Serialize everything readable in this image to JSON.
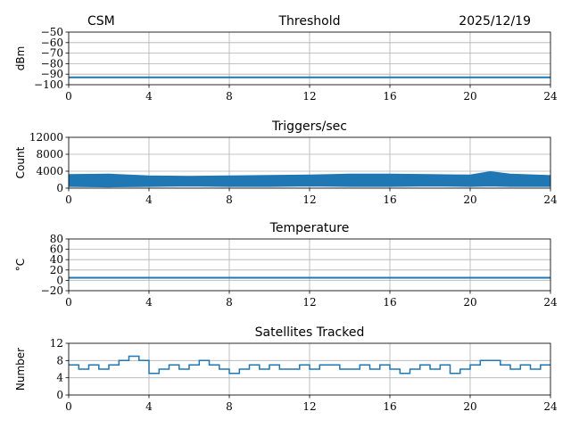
{
  "header": {
    "left": "CSM",
    "right": "2025/12/19"
  },
  "colors": {
    "series": "#1f77b4",
    "grid": "#b0b0b0"
  },
  "chart_data": [
    {
      "type": "line",
      "title": "Threshold",
      "ylabel": "dBm",
      "xlim": [
        0,
        24
      ],
      "ylim": [
        -100,
        -50
      ],
      "xticks": [
        0,
        4,
        8,
        12,
        16,
        20,
        24
      ],
      "yticks": [
        -50,
        -60,
        -70,
        -80,
        -90,
        -100
      ],
      "ytick_labels": [
        "−50",
        "−60",
        "−70",
        "−80",
        "−90",
        "−100"
      ],
      "grid": true,
      "series": [
        {
          "x": [
            0,
            24
          ],
          "y": [
            -93,
            -93
          ]
        }
      ]
    },
    {
      "type": "line",
      "title": "Triggers/sec",
      "ylabel": "Count",
      "xlim": [
        0,
        24
      ],
      "ylim": [
        0,
        12000
      ],
      "xticks": [
        0,
        4,
        8,
        12,
        16,
        20,
        24
      ],
      "yticks": [
        0,
        4000,
        8000,
        12000
      ],
      "ytick_labels": [
        "0",
        "4000",
        "8000",
        "12000"
      ],
      "grid": true,
      "band": {
        "x": [
          0,
          2,
          4,
          6,
          8,
          10,
          12,
          14,
          16,
          18,
          20,
          21,
          22,
          24
        ],
        "low": [
          400,
          300,
          400,
          500,
          400,
          400,
          500,
          400,
          400,
          500,
          400,
          500,
          400,
          400
        ],
        "high": [
          3200,
          3300,
          2900,
          2800,
          2900,
          3000,
          3100,
          3300,
          3300,
          3200,
          3100,
          3900,
          3300,
          3000
        ]
      }
    },
    {
      "type": "line",
      "title": "Temperature",
      "ylabel": "°C",
      "xlim": [
        0,
        24
      ],
      "ylim": [
        -20,
        80
      ],
      "xticks": [
        0,
        4,
        8,
        12,
        16,
        20,
        24
      ],
      "yticks": [
        -20,
        0,
        20,
        40,
        60,
        80
      ],
      "ytick_labels": [
        "−20",
        "0",
        "20",
        "40",
        "60",
        "80"
      ],
      "grid": true,
      "series": [
        {
          "x": [
            0,
            24
          ],
          "y": [
            5,
            5
          ]
        }
      ]
    },
    {
      "type": "line",
      "title": "Satellites Tracked",
      "ylabel": "Number",
      "xlim": [
        0,
        24
      ],
      "ylim": [
        0,
        12
      ],
      "xticks": [
        0,
        4,
        8,
        12,
        16,
        20,
        24
      ],
      "yticks": [
        0,
        4,
        8,
        12
      ],
      "ytick_labels": [
        "0",
        "4",
        "8",
        "12"
      ],
      "grid": true,
      "series": [
        {
          "x": [
            0,
            0.5,
            1,
            1.5,
            2,
            2.5,
            3,
            3.5,
            4,
            4.5,
            5,
            5.5,
            6,
            6.5,
            7,
            7.5,
            8,
            8.5,
            9,
            9.5,
            10,
            10.5,
            11,
            11.5,
            12,
            12.5,
            13,
            13.5,
            14,
            14.5,
            15,
            15.5,
            16,
            16.5,
            17,
            17.5,
            18,
            18.5,
            19,
            19.5,
            20,
            20.5,
            21,
            21.5,
            22,
            22.5,
            23,
            23.5,
            24
          ],
          "y": [
            7,
            6,
            7,
            6,
            7,
            8,
            9,
            8,
            5,
            6,
            7,
            6,
            7,
            8,
            7,
            6,
            5,
            6,
            7,
            6,
            7,
            6,
            6,
            7,
            6,
            7,
            7,
            6,
            6,
            7,
            6,
            7,
            6,
            5,
            6,
            7,
            6,
            7,
            5,
            6,
            7,
            8,
            8,
            7,
            6,
            7,
            6,
            7,
            7
          ]
        }
      ]
    }
  ]
}
